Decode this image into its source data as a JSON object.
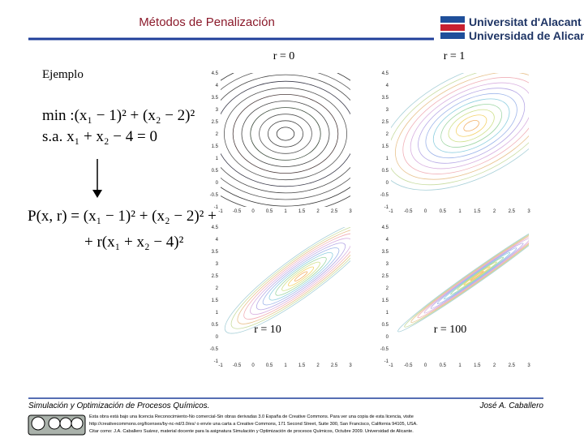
{
  "header": {
    "title": "Métodos de Penalización",
    "university_ca": "Universitat d'Alacant",
    "university_es": "Universidad de Alicante"
  },
  "example": {
    "label": "Ejemplo",
    "objective": "min :(x₁ − 1)² + (x₂ − 2)²",
    "constraint": "s.a.   x₁ + x₂ − 4 = 0",
    "penalty_line1": "P(x, r) = (x₁ − 1)² + (x₂ − 2)² +",
    "penalty_line2": "+ r(x₁ + x₂ − 4)²"
  },
  "plots": [
    {
      "label": "r = 0",
      "xticks": [
        -1,
        -0.5,
        0,
        0.5,
        1,
        1.5,
        2,
        2.5,
        3
      ],
      "yticks": [
        -1,
        -0.5,
        0,
        0.5,
        1,
        1.5,
        2,
        2.5,
        3,
        3.5,
        4,
        4.5
      ]
    },
    {
      "label": "r = 1",
      "xticks": [
        -1,
        -0.5,
        0,
        0.5,
        1,
        1.5,
        2,
        2.5,
        3
      ],
      "yticks": [
        -1,
        -0.5,
        0,
        0.5,
        1,
        1.5,
        2,
        2.5,
        3,
        3.5,
        4,
        4.5
      ]
    },
    {
      "label": "r = 10",
      "xticks": [
        -1,
        -0.5,
        0,
        0.5,
        1,
        1.5,
        2,
        2.5,
        3
      ],
      "yticks": [
        -1,
        -0.5,
        0,
        0.5,
        1,
        1.5,
        2,
        2.5,
        3,
        3.5,
        4,
        4.5
      ]
    },
    {
      "label": "r = 100",
      "xticks": [
        -1,
        -0.5,
        0,
        0.5,
        1,
        1.5,
        2,
        2.5,
        3
      ],
      "yticks": [
        -1,
        -0.5,
        0,
        0.5,
        1,
        1.5,
        2,
        2.5,
        3,
        3.5,
        4,
        4.5
      ]
    }
  ],
  "footer": {
    "course": "Simulación y Optimización de Procesos Químicos.",
    "author": "José A. Caballero",
    "license": [
      "Esta obra está bajo una licencia Reconocimiento-No comercial-Sin obras derivadas 3.0 España de Creative Commons. Para ver una copia de esta licencia, visite",
      "http://creativecommons.org/licenses/by-nc-nd/3.0/es/ o envíe una carta a Creative Commons, 171 Second Street, Suite 300, San Francisco, California 94105, USA.",
      "Citar como: J.A. Caballero Suárez, material docente para la asignatura Simulación y Optimización de procesos Químicos, Octubre 2009. Universidad de Alicante."
    ]
  }
}
